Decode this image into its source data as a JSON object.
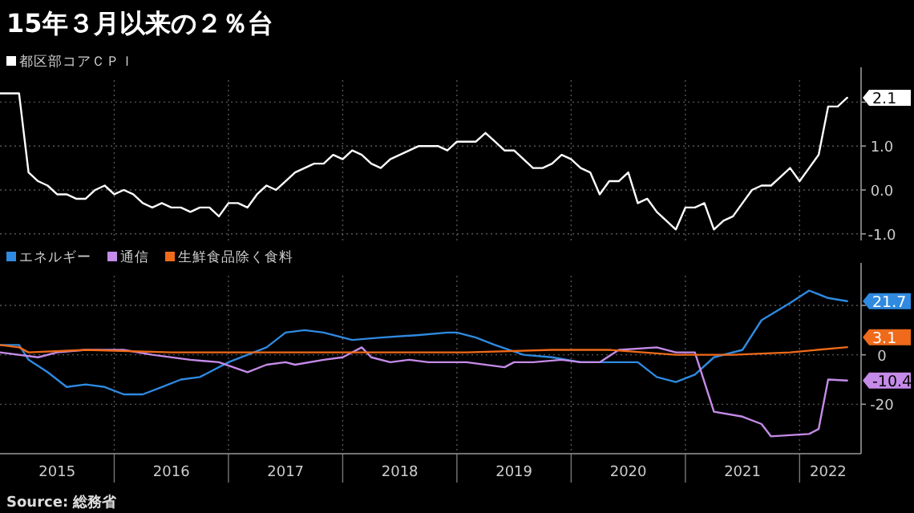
{
  "chart_data": [
    {
      "type": "line",
      "title": "15年３月以来の２％台",
      "x": [
        "2015-01",
        "2015-02",
        "2015-03",
        "2015-04",
        "2015-05",
        "2015-06",
        "2015-07",
        "2015-08",
        "2015-09",
        "2015-10",
        "2015-11",
        "2015-12",
        "2016-01",
        "2016-02",
        "2016-03",
        "2016-04",
        "2016-05",
        "2016-06",
        "2016-07",
        "2016-08",
        "2016-09",
        "2016-10",
        "2016-11",
        "2016-12",
        "2017-01",
        "2017-02",
        "2017-03",
        "2017-04",
        "2017-05",
        "2017-06",
        "2017-07",
        "2017-08",
        "2017-09",
        "2017-10",
        "2017-11",
        "2017-12",
        "2018-01",
        "2018-02",
        "2018-03",
        "2018-04",
        "2018-05",
        "2018-06",
        "2018-07",
        "2018-08",
        "2018-09",
        "2018-10",
        "2018-11",
        "2018-12",
        "2019-01",
        "2019-02",
        "2019-03",
        "2019-04",
        "2019-05",
        "2019-06",
        "2019-07",
        "2019-08",
        "2019-09",
        "2019-10",
        "2019-11",
        "2019-12",
        "2020-01",
        "2020-02",
        "2020-03",
        "2020-04",
        "2020-05",
        "2020-06",
        "2020-07",
        "2020-08",
        "2020-09",
        "2020-10",
        "2020-11",
        "2020-12",
        "2021-01",
        "2021-02",
        "2021-03",
        "2021-04",
        "2021-05",
        "2021-06",
        "2021-07",
        "2021-08",
        "2021-09",
        "2021-10",
        "2021-11",
        "2021-12",
        "2022-01",
        "2022-02",
        "2022-03",
        "2022-04",
        "2022-05",
        "2022-06"
      ],
      "series": [
        {
          "name": "都区部コアＣＰＩ",
          "color": "#ffffff",
          "values": [
            2.2,
            2.2,
            2.2,
            0.4,
            0.2,
            0.1,
            -0.1,
            -0.1,
            -0.2,
            -0.2,
            0.0,
            0.1,
            -0.1,
            0.0,
            -0.1,
            -0.3,
            -0.4,
            -0.3,
            -0.4,
            -0.4,
            -0.5,
            -0.4,
            -0.4,
            -0.6,
            -0.3,
            -0.3,
            -0.4,
            -0.1,
            0.1,
            0.0,
            0.2,
            0.4,
            0.5,
            0.6,
            0.6,
            0.8,
            0.7,
            0.9,
            0.8,
            0.6,
            0.5,
            0.7,
            0.8,
            0.9,
            1.0,
            1.0,
            1.0,
            0.9,
            1.1,
            1.1,
            1.1,
            1.3,
            1.1,
            0.9,
            0.9,
            0.7,
            0.5,
            0.5,
            0.6,
            0.8,
            0.7,
            0.5,
            0.4,
            -0.1,
            0.2,
            0.2,
            0.4,
            -0.3,
            -0.2,
            -0.5,
            -0.7,
            -0.9,
            -0.4,
            -0.4,
            -0.3,
            -0.9,
            -0.7,
            -0.6,
            -0.3,
            0.0,
            0.1,
            0.1,
            0.3,
            0.5,
            0.2,
            0.5,
            0.8,
            1.9,
            1.9,
            2.1
          ],
          "value_labels": [
            null,
            null,
            null,
            null,
            null,
            null,
            null,
            null,
            null,
            null,
            null,
            null,
            null,
            null,
            null,
            null,
            null,
            null,
            null,
            null,
            null,
            null,
            null,
            null,
            null,
            null,
            null,
            null,
            null,
            null,
            null,
            null,
            null,
            null,
            null,
            null,
            null,
            null,
            null,
            null,
            null,
            null,
            null,
            null,
            null,
            null,
            null,
            null,
            null,
            null,
            null,
            null,
            null,
            null,
            null,
            null,
            null,
            null,
            null,
            null,
            null,
            null,
            null,
            null,
            null,
            null,
            null,
            null,
            null,
            null,
            null,
            null,
            null,
            null,
            null,
            null,
            null,
            null,
            null,
            null,
            null,
            null,
            null,
            null,
            null,
            null,
            null,
            null,
            null,
            "2.1"
          ]
        }
      ],
      "xlim": [
        "2015-01-01",
        "2022-07-15"
      ],
      "xticks": [
        {
          "value": "2016-01-01",
          "label": null
        },
        {
          "value": "2017-01-01",
          "label": null
        },
        {
          "value": "2018-01-01",
          "label": null
        },
        {
          "value": "2019-01-01",
          "label": null
        },
        {
          "value": "2020-01-01",
          "label": null
        },
        {
          "value": "2021-01-01",
          "label": null
        },
        {
          "value": "2022-01-01",
          "label": null
        }
      ],
      "ylim": [
        -1.15,
        2.5
      ],
      "yticks": [
        {
          "value": -1,
          "label": "-1.0"
        },
        {
          "value": 0,
          "label": "0.0"
        },
        {
          "value": 1,
          "label": "1.0"
        },
        {
          "value": 2,
          "label": null
        }
      ],
      "grid": true,
      "legend": "top left",
      "tick_labels": "y"
    },
    {
      "type": "line",
      "series": [
        {
          "name": "エネルギー",
          "color": "#2f8ae0",
          "x": [
            "2015-01",
            "2015-03",
            "2015-04",
            "2015-06",
            "2015-08",
            "2015-10",
            "2015-12",
            "2016-02",
            "2016-04",
            "2016-06",
            "2016-08",
            "2016-10",
            "2017-01",
            "2017-05",
            "2017-07",
            "2017-09",
            "2017-11",
            "2018-02",
            "2018-05",
            "2018-09",
            "2018-12",
            "2019-01",
            "2019-03",
            "2019-05",
            "2019-08",
            "2019-11",
            "2020-02",
            "2020-05",
            "2020-08",
            "2020-10",
            "2020-12",
            "2021-02",
            "2021-04",
            "2021-07",
            "2021-09",
            "2021-12",
            "2022-02",
            "2022-04",
            "2022-06"
          ],
          "values": [
            4,
            4,
            -2,
            -7,
            -13,
            -12,
            -13,
            -16,
            -16,
            -13,
            -10,
            -9,
            -3,
            3,
            9,
            10,
            9,
            6,
            7,
            8,
            9,
            9,
            7,
            4,
            0,
            -1,
            -3,
            -3,
            -3,
            -9,
            -11,
            -8,
            -1,
            2,
            14,
            21,
            26,
            23,
            21.7
          ],
          "value_labels": [
            null,
            null,
            null,
            null,
            null,
            null,
            null,
            null,
            null,
            null,
            null,
            null,
            null,
            null,
            null,
            null,
            null,
            null,
            null,
            null,
            null,
            null,
            null,
            null,
            null,
            null,
            null,
            null,
            null,
            null,
            null,
            null,
            null,
            null,
            null,
            null,
            null,
            null,
            "21.7"
          ]
        },
        {
          "name": "通信",
          "color": "#c58be8",
          "x": [
            "2015-01",
            "2015-05",
            "2015-07",
            "2015-10",
            "2016-02",
            "2016-05",
            "2016-09",
            "2016-12",
            "2017-03",
            "2017-05",
            "2017-07",
            "2017-08",
            "2017-11",
            "2018-01",
            "2018-03",
            "2018-04",
            "2018-06",
            "2018-08",
            "2018-10",
            "2019-02",
            "2019-06",
            "2019-07",
            "2019-09",
            "2019-12",
            "2020-02",
            "2020-04",
            "2020-06",
            "2020-10",
            "2020-12",
            "2021-02",
            "2021-04",
            "2021-07",
            "2021-09",
            "2021-10",
            "2022-02",
            "2022-03",
            "2022-04",
            "2022-06"
          ],
          "values": [
            1,
            -1,
            1,
            2,
            2,
            0,
            -2,
            -3,
            -7,
            -4,
            -3,
            -4,
            -2,
            -1,
            3,
            -1,
            -3,
            -2,
            -3,
            -3,
            -5,
            -3,
            -3,
            -2,
            -3,
            -3,
            2,
            3,
            1,
            1,
            -23,
            -25,
            -28,
            -33,
            -32,
            -30,
            -10,
            -10.4
          ],
          "value_labels": [
            null,
            null,
            null,
            null,
            null,
            null,
            null,
            null,
            null,
            null,
            null,
            null,
            null,
            null,
            null,
            null,
            null,
            null,
            null,
            null,
            null,
            null,
            null,
            null,
            null,
            null,
            null,
            null,
            null,
            null,
            null,
            null,
            null,
            null,
            null,
            null,
            null,
            "-10.4"
          ]
        },
        {
          "name": "生鮮食品除く食料",
          "color": "#ef6a1a",
          "x": [
            "2015-01",
            "2015-03",
            "2015-04",
            "2015-10",
            "2016-07",
            "2017-03",
            "2018-02",
            "2019-02",
            "2019-11",
            "2020-05",
            "2020-12",
            "2021-06",
            "2021-12",
            "2022-06"
          ],
          "values": [
            4,
            3,
            1,
            2,
            1,
            1,
            1,
            1,
            2,
            2,
            0,
            0,
            1,
            3.1
          ],
          "value_labels": [
            null,
            null,
            null,
            null,
            null,
            null,
            null,
            null,
            null,
            null,
            null,
            null,
            null,
            "3.1"
          ]
        }
      ],
      "xlim": [
        "2015-01-01",
        "2022-07-15"
      ],
      "xticks": [
        {
          "value": "2015-07-01",
          "label": "2015"
        },
        {
          "value": "2016-07-01",
          "label": "2016"
        },
        {
          "value": "2017-07-01",
          "label": "2017"
        },
        {
          "value": "2018-07-01",
          "label": "2018"
        },
        {
          "value": "2019-07-01",
          "label": "2019"
        },
        {
          "value": "2020-07-01",
          "label": "2020"
        },
        {
          "value": "2021-07-01",
          "label": "2021"
        },
        {
          "value": "2022-04-01",
          "label": "2022"
        },
        {
          "value": "2016-01-01",
          "label": null
        },
        {
          "value": "2017-01-01",
          "label": null
        },
        {
          "value": "2018-01-01",
          "label": null
        },
        {
          "value": "2019-01-01",
          "label": null
        },
        {
          "value": "2020-01-01",
          "label": null
        },
        {
          "value": "2021-01-01",
          "label": null
        },
        {
          "value": "2022-01-01",
          "label": null
        }
      ],
      "ylim": [
        -40,
        32
      ],
      "yticks": [
        {
          "value": -20,
          "label": "-20"
        },
        {
          "value": 0,
          "label": "0"
        },
        {
          "value": 20,
          "label": null
        }
      ],
      "grid": true,
      "legend": "top left",
      "annotations": [
        "Source: 総務省"
      ]
    }
  ]
}
